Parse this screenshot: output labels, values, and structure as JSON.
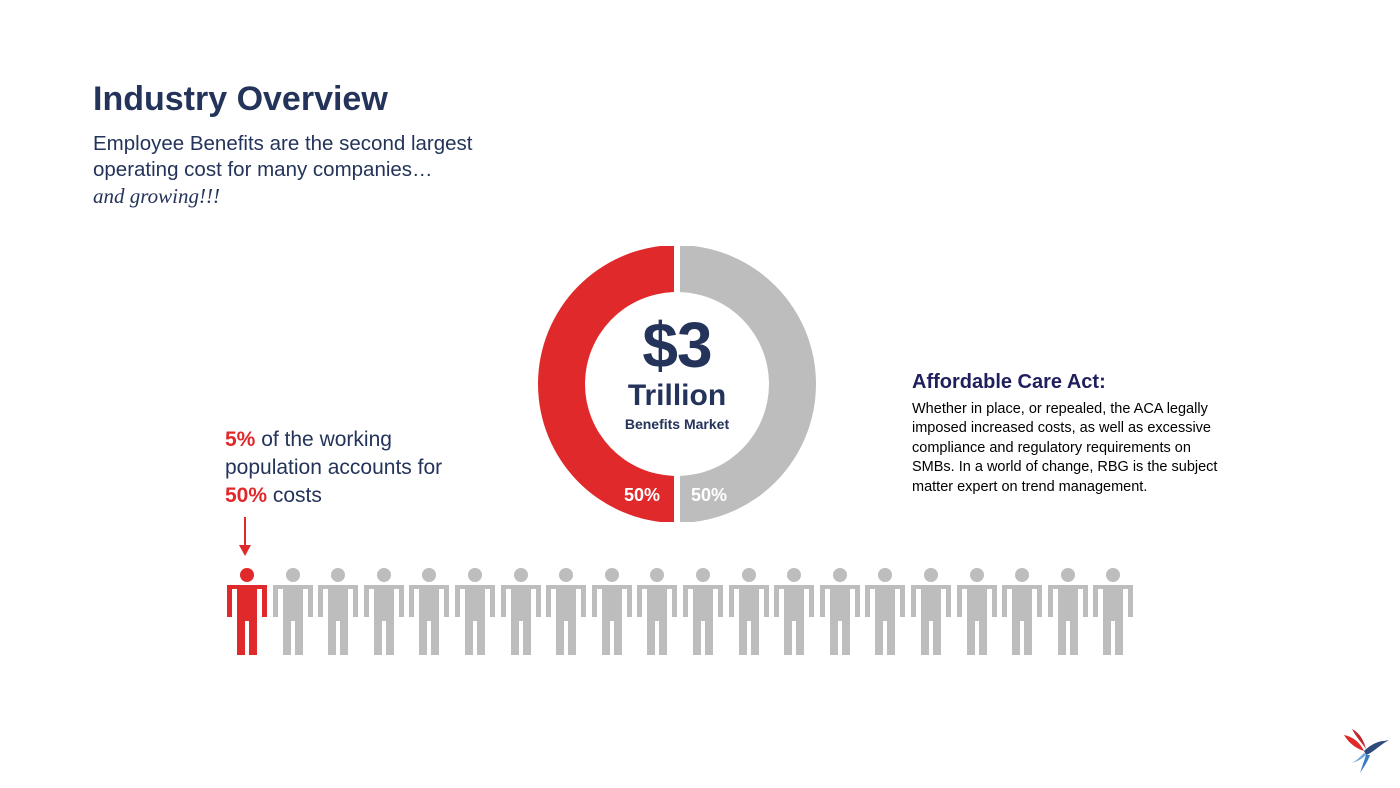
{
  "title": "Industry Overview",
  "subtitle": {
    "line1": "Employee Benefits are the second largest",
    "line2": "operating cost for many companies…",
    "emphasis": "and growing!!!"
  },
  "donut": {
    "amount": "$3",
    "unit": "Trillion",
    "label": "Benefits Market",
    "segments": [
      {
        "label": "50%",
        "value": 50,
        "color": "#e0292b"
      },
      {
        "label": "50%",
        "value": 50,
        "color": "#bdbdbd"
      }
    ]
  },
  "aca": {
    "title": "Affordable Care Act:",
    "body": "Whether in place, or repealed, the ACA legally imposed increased costs, as well as excessive compliance and regulatory requirements on SMBs. In a world of change, RBG is the subject matter expert on trend management."
  },
  "stat": {
    "pct1": "5%",
    "text1": " of the working population accounts for ",
    "pct2": "50%",
    "text2": " costs"
  },
  "people": {
    "total": 20,
    "highlighted": 1,
    "highlight_color": "#e0292b",
    "base_color": "#bdbdbd"
  },
  "logo": {
    "icon": "hummingbird-logo-icon"
  }
}
